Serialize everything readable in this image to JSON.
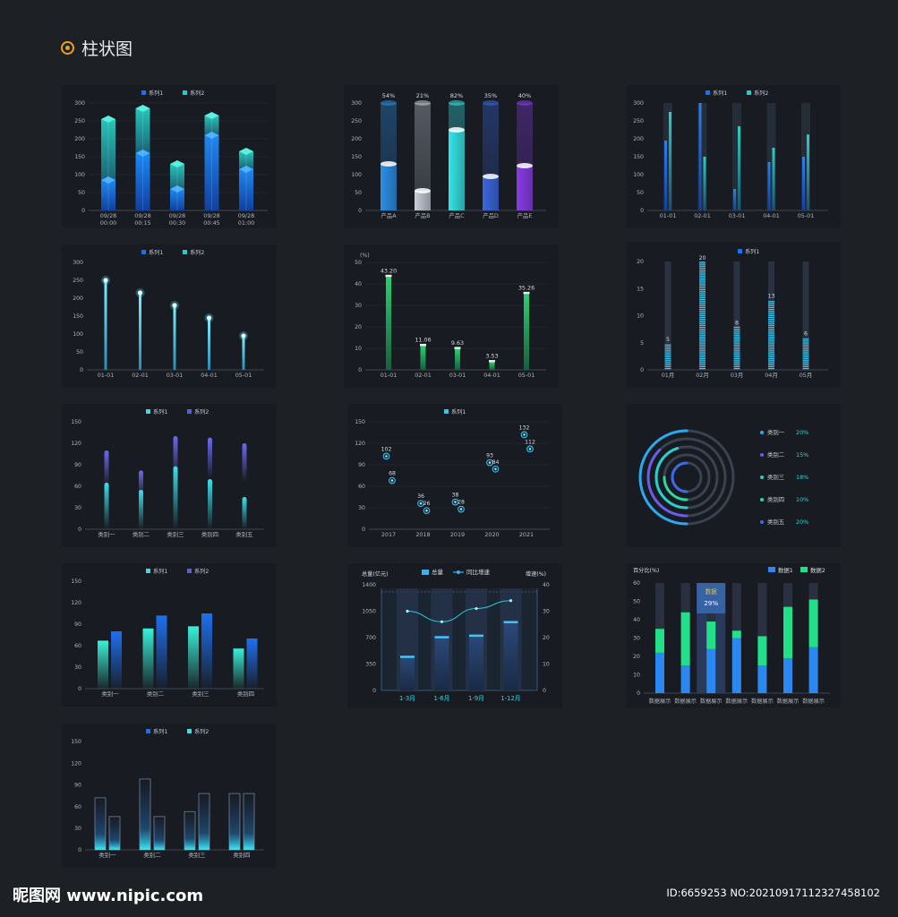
{
  "header": {
    "title": "柱状图"
  },
  "watermark": {
    "logo_text": "昵图网 www.nipic.com",
    "id_text": "ID:6659253 NO:20210917112327458102"
  },
  "colors": {
    "background": "#1d2126",
    "panel": "#181c22",
    "blue": "#1f6fe8",
    "cyan": "#33d6d8",
    "green": "#22c47a",
    "purple": "#5b5de0",
    "orange": "#f0a020"
  },
  "chart_data": [
    {
      "id": "c1",
      "type": "bar",
      "style": "3d-stacked",
      "legend": [
        "系列1",
        "系列2"
      ],
      "categories": [
        "09/28\n00:00",
        "09/28\n00:15",
        "09/28\n00:30",
        "09/28\n00:45",
        "09/28\n01:00"
      ],
      "series": [
        {
          "name": "系列1",
          "values": [
            85,
            160,
            60,
            210,
            115
          ]
        },
        {
          "name": "系列2",
          "values": [
            255,
            285,
            130,
            265,
            165
          ]
        }
      ],
      "yticks": [
        "0",
        "50",
        "100",
        "150",
        "200",
        "250",
        "300"
      ],
      "ylim": [
        0,
        300
      ]
    },
    {
      "id": "c2",
      "type": "bar",
      "style": "cylinder",
      "categories": [
        "产品A",
        "产品B",
        "产品C",
        "产品D",
        "产品E"
      ],
      "values": [
        130,
        55,
        225,
        95,
        125
      ],
      "labels": [
        "54%",
        "21%",
        "82%",
        "35%",
        "40%"
      ],
      "colors": [
        "#2a90e8",
        "#c8ccd8",
        "#33e6e8",
        "#3a66e0",
        "#8a3ae8"
      ],
      "yticks": [
        "0",
        "50",
        "100",
        "150",
        "200",
        "250",
        "300"
      ],
      "ylim": [
        0,
        300
      ]
    },
    {
      "id": "c3",
      "type": "bar",
      "style": "thin-pair",
      "legend": [
        "系列1",
        "系列2"
      ],
      "categories": [
        "01-01",
        "02-01",
        "03-01",
        "04-01",
        "05-01"
      ],
      "series": [
        {
          "name": "系列1",
          "values": [
            195,
            300,
            60,
            135,
            150
          ]
        },
        {
          "name": "系列2",
          "values": [
            275,
            150,
            235,
            175,
            212
          ]
        }
      ],
      "yticks": [
        "0",
        "50",
        "100",
        "150",
        "200",
        "250",
        "300"
      ],
      "ylim": [
        0,
        300
      ]
    },
    {
      "id": "c4",
      "type": "bar",
      "style": "glow-line",
      "legend": [
        "系列1",
        "系列2"
      ],
      "categories": [
        "01-01",
        "02-01",
        "03-01",
        "04-01",
        "05-01"
      ],
      "values": [
        250,
        215,
        180,
        145,
        95
      ],
      "yticks": [
        "0",
        "50",
        "100",
        "150",
        "200",
        "250",
        "300"
      ],
      "ylim": [
        0,
        300
      ]
    },
    {
      "id": "c5",
      "type": "bar",
      "style": "capped",
      "unit": "(%)",
      "categories": [
        "01-01",
        "02-01",
        "03-01",
        "04-01",
        "05-01"
      ],
      "values": [
        43.2,
        11.06,
        9.63,
        3.53,
        35.26
      ],
      "labels": [
        "43.20",
        "11.06",
        "9.63",
        "3.53",
        "35.26"
      ],
      "yticks": [
        "0",
        "10",
        "20",
        "30",
        "40",
        "50"
      ],
      "ylim": [
        0,
        50
      ]
    },
    {
      "id": "c6",
      "type": "bar",
      "style": "segmented",
      "legend": [
        "系列1"
      ],
      "categories": [
        "01月",
        "02月",
        "03月",
        "04月",
        "05月"
      ],
      "values": [
        5,
        20,
        8,
        13,
        6
      ],
      "labels": [
        "5",
        "20",
        "8",
        "13",
        "6"
      ],
      "yticks": [
        "0",
        "5",
        "10",
        "15",
        "20"
      ],
      "ylim": [
        0,
        20
      ]
    },
    {
      "id": "c7",
      "type": "bar",
      "style": "split-gradient",
      "legend": [
        "系列1",
        "系列2"
      ],
      "categories": [
        "类别一",
        "类别二",
        "类别三",
        "类别四",
        "类别五"
      ],
      "series": [
        {
          "name": "系列1",
          "values": [
            65,
            55,
            88,
            70,
            45
          ]
        },
        {
          "name": "系列2",
          "values": [
            110,
            82,
            130,
            128,
            120
          ]
        }
      ],
      "yticks": [
        "0",
        "30",
        "60",
        "90",
        "120",
        "150"
      ],
      "ylim": [
        0,
        150
      ]
    },
    {
      "id": "c8",
      "type": "bar",
      "style": "pin",
      "legend": [
        "系列1"
      ],
      "categories": [
        "2017",
        "2018",
        "2019",
        "2020",
        "2021"
      ],
      "values": [
        [
          102,
          68
        ],
        [
          36,
          26
        ],
        [
          38,
          28
        ],
        [
          93,
          84
        ],
        [
          132,
          112
        ]
      ],
      "labels": [
        [
          "102",
          "68"
        ],
        [
          "36",
          "26"
        ],
        [
          "38",
          "28"
        ],
        [
          "93",
          "84"
        ],
        [
          "132",
          "112"
        ]
      ],
      "yticks": [
        "0",
        "30",
        "60",
        "90",
        "120",
        "150"
      ],
      "ylim": [
        0,
        150
      ]
    },
    {
      "id": "c9",
      "type": "pie",
      "style": "concentric-rings",
      "items": [
        {
          "name": "类别一",
          "value": "20%",
          "color": "#2aa8f0"
        },
        {
          "name": "类别二",
          "value": "15%",
          "color": "#6a5de8"
        },
        {
          "name": "类别三",
          "value": "18%",
          "color": "#2ad0c8"
        },
        {
          "name": "类别四",
          "value": "10%",
          "color": "#2ad8a0"
        },
        {
          "name": "类别五",
          "value": "20%",
          "color": "#3a6ae8"
        }
      ]
    },
    {
      "id": "c10",
      "type": "bar",
      "style": "grouped-gradient",
      "legend": [
        "系列1",
        "系列2"
      ],
      "categories": [
        "类别一",
        "类别二",
        "类别三",
        "类别四"
      ],
      "series": [
        {
          "name": "系列1",
          "values": [
            67,
            84,
            87,
            56
          ]
        },
        {
          "name": "系列2",
          "values": [
            80,
            102,
            105,
            70
          ]
        }
      ],
      "yticks": [
        "0",
        "30",
        "60",
        "90",
        "120",
        "150"
      ],
      "ylim": [
        0,
        150
      ]
    },
    {
      "id": "c11",
      "type": "bar",
      "style": "bar-line",
      "legend": [
        "总量",
        "同比增速"
      ],
      "ylabel_left": "总量(亿元)",
      "ylabel_right": "增速(%)",
      "categories": [
        "1-3月",
        "1-6月",
        "1-9月",
        "1-12月"
      ],
      "values": [
        460,
        720,
        740,
        920
      ],
      "line": [
        30,
        26,
        31,
        34
      ],
      "yticks": [
        "0",
        "350",
        "700",
        "1050",
        "1400"
      ],
      "yticks_right": [
        "0",
        "10",
        "20",
        "30",
        "40"
      ],
      "ylim": [
        0,
        1400
      ],
      "ylim_right": [
        0,
        40
      ]
    },
    {
      "id": "c12",
      "type": "bar",
      "style": "stacked-highlight",
      "legend": [
        "数据1",
        "数据2"
      ],
      "ylabel": "百分比(%)",
      "categories": [
        "数据展示",
        "数据展示",
        "数据展示",
        "数据展示",
        "数据展示",
        "数据展示",
        "数据展示"
      ],
      "series": [
        {
          "name": "数据1",
          "values": [
            22,
            15,
            24,
            30,
            15,
            19,
            25
          ]
        },
        {
          "name": "数据2",
          "values": [
            13,
            29,
            15,
            4,
            16,
            28,
            26
          ]
        }
      ],
      "tooltip": {
        "label": "数据",
        "value": "29%"
      },
      "yticks": [
        "0",
        "10",
        "20",
        "30",
        "40",
        "50",
        "60"
      ],
      "ylim": [
        0,
        60
      ]
    },
    {
      "id": "c13",
      "type": "bar",
      "style": "outlined-gradient",
      "legend": [
        "系列1",
        "系列2"
      ],
      "categories": [
        "类别一",
        "类别二",
        "类别三",
        "类别四"
      ],
      "series": [
        {
          "name": "系列1",
          "values": [
            72,
            98,
            53,
            78
          ]
        },
        {
          "name": "系列2",
          "values": [
            46,
            46,
            78,
            78
          ]
        }
      ],
      "yticks": [
        "0",
        "30",
        "60",
        "90",
        "120",
        "150"
      ],
      "ylim": [
        0,
        150
      ]
    }
  ]
}
